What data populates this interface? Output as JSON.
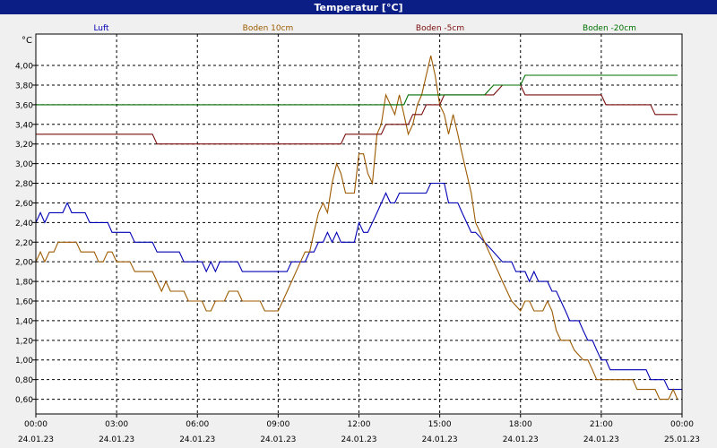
{
  "colors": {
    "title_bar": "#0a1e86",
    "title_text": "#ffffff",
    "background": "#f0f0f0",
    "plot_background": "#ffffff",
    "grid": "#000000"
  },
  "chart_data": {
    "type": "line",
    "title": "Temperatur [°C]",
    "ylabel": "°C",
    "ylim": [
      0.45,
      4.32
    ],
    "y_ticks": [
      "4,00",
      "3,80",
      "3,60",
      "3,40",
      "3,20",
      "3,00",
      "2,80",
      "2,60",
      "2,40",
      "2,20",
      "2,00",
      "1,80",
      "1,60",
      "1,40",
      "1,20",
      "1,00",
      "0,80",
      "0,60"
    ],
    "y_tick_values": [
      4.0,
      3.8,
      3.6,
      3.4,
      3.2,
      3.0,
      2.8,
      2.6,
      2.4,
      2.2,
      2.0,
      1.8,
      1.6,
      1.4,
      1.2,
      1.0,
      0.8,
      0.6
    ],
    "x_range": [
      "24.01.23 00:00",
      "25.01.23 00:00"
    ],
    "x_ticks": [
      {
        "time": "00:00",
        "date": "24.01.23",
        "h": 0
      },
      {
        "time": "03:00",
        "date": "24.01.23",
        "h": 3
      },
      {
        "time": "06:00",
        "date": "24.01.23",
        "h": 6
      },
      {
        "time": "09:00",
        "date": "24.01.23",
        "h": 9
      },
      {
        "time": "12:00",
        "date": "24.01.23",
        "h": 12
      },
      {
        "time": "15:00",
        "date": "24.01.23",
        "h": 15
      },
      {
        "time": "18:00",
        "date": "24.01.23",
        "h": 18
      },
      {
        "time": "21:00",
        "date": "24.01.23",
        "h": 21
      },
      {
        "time": "00:00",
        "date": "25.01.23",
        "h": 24
      }
    ],
    "grid": true,
    "legend_position": "top",
    "series": [
      {
        "name": "Luft",
        "color": "#0000b4",
        "points": [
          [
            0,
            2.4
          ],
          [
            0.17,
            2.5
          ],
          [
            0.33,
            2.4
          ],
          [
            0.5,
            2.5
          ],
          [
            1.0,
            2.5
          ],
          [
            1.17,
            2.6
          ],
          [
            1.33,
            2.5
          ],
          [
            1.83,
            2.5
          ],
          [
            2.0,
            2.4
          ],
          [
            2.67,
            2.4
          ],
          [
            2.83,
            2.3
          ],
          [
            3.5,
            2.3
          ],
          [
            3.67,
            2.2
          ],
          [
            4.33,
            2.2
          ],
          [
            4.5,
            2.1
          ],
          [
            5.33,
            2.1
          ],
          [
            5.5,
            2.0
          ],
          [
            6.17,
            2.0
          ],
          [
            6.33,
            1.9
          ],
          [
            6.5,
            2.0
          ],
          [
            6.67,
            1.9
          ],
          [
            6.83,
            2.0
          ],
          [
            7.5,
            2.0
          ],
          [
            7.67,
            1.9
          ],
          [
            9.33,
            1.9
          ],
          [
            9.5,
            2.0
          ],
          [
            10.0,
            2.0
          ],
          [
            10.17,
            2.1
          ],
          [
            10.33,
            2.1
          ],
          [
            10.5,
            2.2
          ],
          [
            10.67,
            2.2
          ],
          [
            10.83,
            2.3
          ],
          [
            11.0,
            2.2
          ],
          [
            11.17,
            2.3
          ],
          [
            11.33,
            2.2
          ],
          [
            11.83,
            2.2
          ],
          [
            12.0,
            2.4
          ],
          [
            12.17,
            2.3
          ],
          [
            12.33,
            2.3
          ],
          [
            12.67,
            2.5
          ],
          [
            13.0,
            2.7
          ],
          [
            13.17,
            2.6
          ],
          [
            13.33,
            2.6
          ],
          [
            13.5,
            2.7
          ],
          [
            14.5,
            2.7
          ],
          [
            14.67,
            2.8
          ],
          [
            15.17,
            2.8
          ],
          [
            15.33,
            2.6
          ],
          [
            15.67,
            2.6
          ],
          [
            15.83,
            2.5
          ],
          [
            16.0,
            2.4
          ],
          [
            16.17,
            2.3
          ],
          [
            16.33,
            2.3
          ],
          [
            16.67,
            2.2
          ],
          [
            17.0,
            2.1
          ],
          [
            17.33,
            2.0
          ],
          [
            17.67,
            2.0
          ],
          [
            17.83,
            1.9
          ],
          [
            18.17,
            1.9
          ],
          [
            18.33,
            1.8
          ],
          [
            18.5,
            1.9
          ],
          [
            18.67,
            1.8
          ],
          [
            19.0,
            1.8
          ],
          [
            19.17,
            1.7
          ],
          [
            19.33,
            1.7
          ],
          [
            19.5,
            1.6
          ],
          [
            19.67,
            1.5
          ],
          [
            19.83,
            1.4
          ],
          [
            20.17,
            1.4
          ],
          [
            20.33,
            1.3
          ],
          [
            20.5,
            1.2
          ],
          [
            20.67,
            1.2
          ],
          [
            20.83,
            1.1
          ],
          [
            21.0,
            1.0
          ],
          [
            21.17,
            1.0
          ],
          [
            21.33,
            0.9
          ],
          [
            22.67,
            0.9
          ],
          [
            22.83,
            0.8
          ],
          [
            23.33,
            0.8
          ],
          [
            23.5,
            0.7
          ],
          [
            24.0,
            0.7
          ]
        ]
      },
      {
        "name": "Boden 10cm",
        "color": "#9c5a00",
        "points": [
          [
            0,
            2.0
          ],
          [
            0.17,
            2.1
          ],
          [
            0.33,
            2.0
          ],
          [
            0.5,
            2.1
          ],
          [
            0.67,
            2.1
          ],
          [
            0.83,
            2.2
          ],
          [
            1.5,
            2.2
          ],
          [
            1.67,
            2.1
          ],
          [
            2.17,
            2.1
          ],
          [
            2.33,
            2.0
          ],
          [
            2.5,
            2.0
          ],
          [
            2.67,
            2.1
          ],
          [
            2.83,
            2.1
          ],
          [
            3.0,
            2.0
          ],
          [
            3.5,
            2.0
          ],
          [
            3.67,
            1.9
          ],
          [
            4.33,
            1.9
          ],
          [
            4.5,
            1.8
          ],
          [
            4.67,
            1.7
          ],
          [
            4.83,
            1.8
          ],
          [
            5.0,
            1.7
          ],
          [
            5.5,
            1.7
          ],
          [
            5.67,
            1.6
          ],
          [
            6.17,
            1.6
          ],
          [
            6.33,
            1.5
          ],
          [
            6.5,
            1.5
          ],
          [
            6.67,
            1.6
          ],
          [
            7.0,
            1.6
          ],
          [
            7.17,
            1.7
          ],
          [
            7.5,
            1.7
          ],
          [
            7.67,
            1.6
          ],
          [
            8.33,
            1.6
          ],
          [
            8.5,
            1.5
          ],
          [
            9.0,
            1.5
          ],
          [
            9.17,
            1.6
          ],
          [
            9.5,
            1.8
          ],
          [
            9.83,
            2.0
          ],
          [
            10.0,
            2.1
          ],
          [
            10.17,
            2.1
          ],
          [
            10.33,
            2.3
          ],
          [
            10.5,
            2.5
          ],
          [
            10.67,
            2.6
          ],
          [
            10.83,
            2.5
          ],
          [
            11.0,
            2.8
          ],
          [
            11.17,
            3.0
          ],
          [
            11.33,
            2.9
          ],
          [
            11.5,
            2.7
          ],
          [
            11.83,
            2.7
          ],
          [
            12.0,
            3.1
          ],
          [
            12.17,
            3.1
          ],
          [
            12.33,
            2.9
          ],
          [
            12.5,
            2.8
          ],
          [
            12.67,
            3.3
          ],
          [
            12.83,
            3.4
          ],
          [
            13.0,
            3.7
          ],
          [
            13.17,
            3.6
          ],
          [
            13.33,
            3.5
          ],
          [
            13.5,
            3.7
          ],
          [
            13.67,
            3.5
          ],
          [
            13.83,
            3.3
          ],
          [
            14.0,
            3.4
          ],
          [
            14.17,
            3.6
          ],
          [
            14.33,
            3.7
          ],
          [
            14.5,
            3.9
          ],
          [
            14.67,
            4.1
          ],
          [
            14.83,
            3.9
          ],
          [
            15.0,
            3.6
          ],
          [
            15.17,
            3.5
          ],
          [
            15.33,
            3.3
          ],
          [
            15.5,
            3.5
          ],
          [
            15.67,
            3.3
          ],
          [
            15.83,
            3.1
          ],
          [
            16.0,
            2.9
          ],
          [
            16.17,
            2.7
          ],
          [
            16.33,
            2.4
          ],
          [
            16.5,
            2.3
          ],
          [
            16.67,
            2.2
          ],
          [
            16.83,
            2.1
          ],
          [
            17.0,
            2.0
          ],
          [
            17.17,
            1.9
          ],
          [
            17.33,
            1.8
          ],
          [
            17.5,
            1.7
          ],
          [
            17.67,
            1.6
          ],
          [
            18.0,
            1.5
          ],
          [
            18.17,
            1.6
          ],
          [
            18.33,
            1.6
          ],
          [
            18.5,
            1.5
          ],
          [
            18.83,
            1.5
          ],
          [
            19.0,
            1.6
          ],
          [
            19.17,
            1.5
          ],
          [
            19.33,
            1.3
          ],
          [
            19.5,
            1.2
          ],
          [
            19.83,
            1.2
          ],
          [
            20.0,
            1.1
          ],
          [
            20.33,
            1.0
          ],
          [
            20.5,
            1.0
          ],
          [
            20.67,
            0.9
          ],
          [
            20.83,
            0.8
          ],
          [
            21.0,
            0.8
          ],
          [
            22.17,
            0.8
          ],
          [
            22.33,
            0.7
          ],
          [
            23.0,
            0.7
          ],
          [
            23.17,
            0.6
          ],
          [
            23.5,
            0.6
          ],
          [
            23.67,
            0.7
          ],
          [
            23.83,
            0.6
          ]
        ]
      },
      {
        "name": "Boden -5cm",
        "color": "#7a0d0d",
        "points": [
          [
            0,
            3.3
          ],
          [
            4.33,
            3.3
          ],
          [
            4.5,
            3.2
          ],
          [
            11.33,
            3.2
          ],
          [
            11.5,
            3.3
          ],
          [
            12.83,
            3.3
          ],
          [
            13.0,
            3.4
          ],
          [
            13.83,
            3.4
          ],
          [
            14.0,
            3.5
          ],
          [
            14.33,
            3.5
          ],
          [
            14.5,
            3.6
          ],
          [
            15.0,
            3.6
          ],
          [
            15.17,
            3.7
          ],
          [
            17.0,
            3.7
          ],
          [
            17.33,
            3.8
          ],
          [
            18.0,
            3.8
          ],
          [
            18.17,
            3.7
          ],
          [
            21.0,
            3.7
          ],
          [
            21.17,
            3.6
          ],
          [
            22.83,
            3.6
          ],
          [
            23.0,
            3.5
          ],
          [
            23.83,
            3.5
          ]
        ]
      },
      {
        "name": "Boden -20cm",
        "color": "#007000",
        "points": [
          [
            0,
            3.6
          ],
          [
            13.67,
            3.6
          ],
          [
            13.83,
            3.7
          ],
          [
            16.67,
            3.7
          ],
          [
            17.0,
            3.8
          ],
          [
            18.0,
            3.8
          ],
          [
            18.17,
            3.9
          ],
          [
            23.83,
            3.9
          ]
        ]
      }
    ]
  }
}
